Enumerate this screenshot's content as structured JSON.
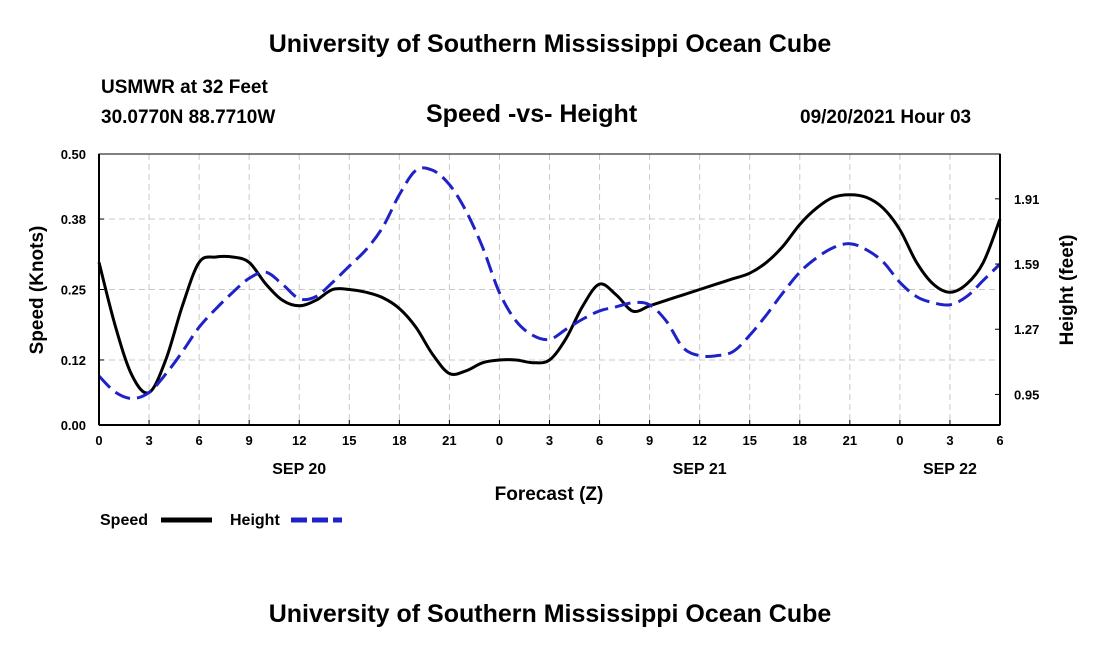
{
  "header": {
    "title": "University of Southern Mississippi Ocean Cube",
    "station": "USMWR at 32 Feet",
    "coordinates": "30.0770N  88.7710W",
    "chart_title": "Speed -vs- Height",
    "datetime": "09/20/2021 Hour 03"
  },
  "footer": {
    "title": "University of Southern Mississippi Ocean Cube"
  },
  "chart_data": {
    "type": "line",
    "title": "Speed -vs- Height",
    "xlabel": "Forecast (Z)",
    "ylabel": "Speed (Knots)",
    "y2label": "Height (feet)",
    "grid": true,
    "legend_position": "bottom-left",
    "x_range": [
      0,
      54
    ],
    "ylim": [
      0,
      0.5
    ],
    "y2lim": [
      0.8,
      2.13
    ],
    "y_ticks": [
      0.0,
      0.12,
      0.25,
      0.38,
      0.5
    ],
    "y_tick_labels": [
      "0.00",
      "0.12",
      "0.25",
      "0.38",
      "0.50"
    ],
    "y2_ticks": [
      0.95,
      1.27,
      1.59,
      1.91
    ],
    "y2_tick_labels": [
      "0.95",
      "1.27",
      "1.59",
      "1.91"
    ],
    "x_ticks": [
      0,
      3,
      6,
      9,
      12,
      15,
      18,
      21,
      24,
      27,
      30,
      33,
      36,
      39,
      42,
      45,
      48,
      51,
      54
    ],
    "x_tick_labels": [
      "0",
      "3",
      "6",
      "9",
      "12",
      "15",
      "18",
      "21",
      "0",
      "3",
      "6",
      "9",
      "12",
      "15",
      "18",
      "21",
      "0",
      "3",
      "6"
    ],
    "date_labels": [
      {
        "label": "SEP 20",
        "x": 12
      },
      {
        "label": "SEP 21",
        "x": 36
      },
      {
        "label": "SEP 22",
        "x": 51
      }
    ],
    "series": [
      {
        "name": "Speed",
        "axis": "left",
        "color": "#000000",
        "style": "solid",
        "x": [
          0,
          1,
          2,
          3,
          4,
          5,
          6,
          7,
          8,
          9,
          10,
          11,
          12,
          13,
          14,
          15,
          16,
          17,
          18,
          19,
          20,
          21,
          22,
          23,
          24,
          25,
          26,
          27,
          28,
          29,
          30,
          31,
          32,
          33,
          34,
          35,
          36,
          37,
          38,
          39,
          40,
          41,
          42,
          43,
          44,
          45,
          46,
          47,
          48,
          49,
          50,
          51,
          52,
          53,
          54
        ],
        "values": [
          0.3,
          0.18,
          0.09,
          0.06,
          0.12,
          0.22,
          0.3,
          0.31,
          0.31,
          0.3,
          0.26,
          0.23,
          0.22,
          0.23,
          0.25,
          0.25,
          0.245,
          0.235,
          0.215,
          0.18,
          0.13,
          0.095,
          0.1,
          0.115,
          0.12,
          0.12,
          0.115,
          0.12,
          0.16,
          0.22,
          0.26,
          0.24,
          0.21,
          0.22,
          0.23,
          0.24,
          0.25,
          0.26,
          0.27,
          0.28,
          0.3,
          0.33,
          0.37,
          0.4,
          0.42,
          0.425,
          0.42,
          0.4,
          0.36,
          0.3,
          0.26,
          0.245,
          0.26,
          0.3,
          0.38
        ]
      },
      {
        "name": "Height",
        "axis": "right",
        "color": "#1e22c8",
        "style": "dashed",
        "x": [
          0,
          1,
          2,
          3,
          4,
          5,
          6,
          7,
          8,
          9,
          10,
          11,
          12,
          13,
          14,
          15,
          16,
          17,
          18,
          19,
          20,
          21,
          22,
          23,
          24,
          25,
          26,
          27,
          28,
          29,
          30,
          31,
          32,
          33,
          34,
          35,
          36,
          37,
          38,
          39,
          40,
          41,
          42,
          43,
          44,
          45,
          46,
          47,
          48,
          49,
          50,
          51,
          52,
          53,
          54
        ],
        "values": [
          1.04,
          0.96,
          0.93,
          0.96,
          1.05,
          1.16,
          1.28,
          1.37,
          1.45,
          1.52,
          1.55,
          1.49,
          1.42,
          1.43,
          1.5,
          1.58,
          1.66,
          1.77,
          1.93,
          2.05,
          2.05,
          1.98,
          1.85,
          1.67,
          1.45,
          1.31,
          1.24,
          1.22,
          1.27,
          1.32,
          1.36,
          1.38,
          1.4,
          1.39,
          1.31,
          1.18,
          1.14,
          1.14,
          1.16,
          1.24,
          1.34,
          1.45,
          1.55,
          1.62,
          1.67,
          1.69,
          1.66,
          1.6,
          1.5,
          1.43,
          1.4,
          1.39,
          1.43,
          1.51,
          1.59
        ]
      }
    ]
  }
}
